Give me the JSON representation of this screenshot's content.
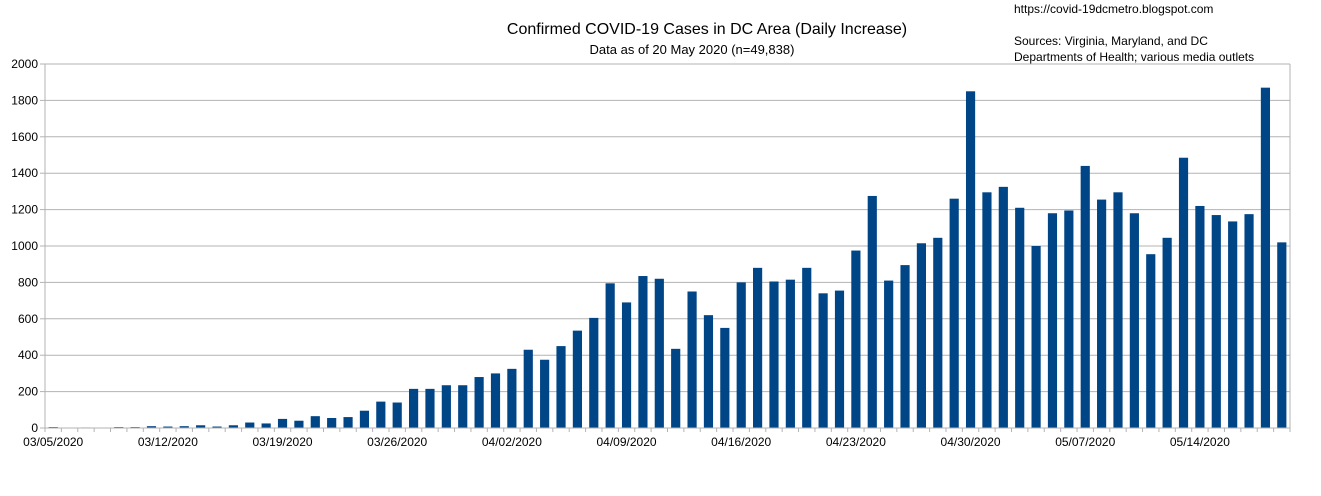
{
  "chart_data": {
    "type": "bar",
    "title": "Confirmed COVID-19 Cases in DC Area (Daily Increase)",
    "subtitle": "Data as of 20 May 2020 (n=49,838)",
    "annotations": {
      "url": "https://covid-19dcmetro.blogspot.com",
      "sources_line1": "Sources: Virginia, Maryland, and DC",
      "sources_line2": "Departments of Health; various media outlets"
    },
    "xlabel": "",
    "ylabel": "",
    "ylim": [
      0,
      2000
    ],
    "yticks": [
      0,
      200,
      400,
      600,
      800,
      1000,
      1200,
      1400,
      1600,
      1800,
      2000
    ],
    "grid": true,
    "bar_color": "#004586",
    "grid_color": "#b3b3b3",
    "x_tick_labels": [
      {
        "label": "03/05/2020",
        "index": 0
      },
      {
        "label": "03/12/2020",
        "index": 7
      },
      {
        "label": "03/19/2020",
        "index": 14
      },
      {
        "label": "03/26/2020",
        "index": 21
      },
      {
        "label": "04/02/2020",
        "index": 28
      },
      {
        "label": "04/09/2020",
        "index": 35
      },
      {
        "label": "04/16/2020",
        "index": 42
      },
      {
        "label": "04/23/2020",
        "index": 49
      },
      {
        "label": "04/30/2020",
        "index": 56
      },
      {
        "label": "05/07/2020",
        "index": 63
      },
      {
        "label": "05/14/2020",
        "index": 70
      }
    ],
    "values": [
      5,
      0,
      3,
      0,
      5,
      5,
      10,
      8,
      10,
      15,
      8,
      15,
      30,
      25,
      50,
      40,
      65,
      55,
      60,
      95,
      145,
      140,
      215,
      215,
      235,
      235,
      280,
      300,
      325,
      430,
      375,
      450,
      535,
      605,
      795,
      690,
      835,
      820,
      435,
      750,
      620,
      550,
      800,
      880,
      805,
      815,
      880,
      740,
      755,
      975,
      1275,
      810,
      895,
      1015,
      1045,
      1260,
      1850,
      1295,
      1325,
      1210,
      1000,
      1180,
      1195,
      1440,
      1255,
      1295,
      1180,
      955,
      1045,
      1485,
      1220,
      1170,
      1135,
      1175,
      1870,
      1020
    ]
  }
}
